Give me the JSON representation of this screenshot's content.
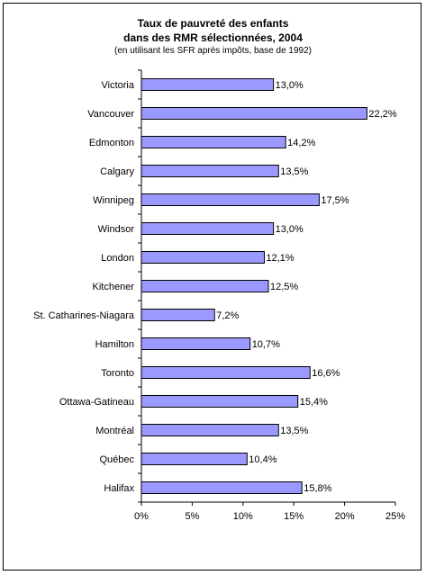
{
  "chart_data": {
    "type": "bar",
    "orientation": "horizontal",
    "title": "Taux de pauvreté des enfants",
    "title_line2": "dans des RMR sélectionnées, 2004",
    "subtitle": "(en utilisant les SFR après impôts, base de 1992)",
    "categories": [
      "Victoria",
      "Vancouver",
      "Edmonton",
      "Calgary",
      "Winnipeg",
      "Windsor",
      "London",
      "Kitchener",
      "St. Catharines-Niagara",
      "Hamilton",
      "Toronto",
      "Ottawa-Gatineau",
      "Montréal",
      "Québec",
      "Halifax"
    ],
    "values": [
      13.0,
      22.2,
      14.2,
      13.5,
      17.5,
      13.0,
      12.1,
      12.5,
      7.2,
      10.7,
      16.6,
      15.4,
      13.5,
      10.4,
      15.8
    ],
    "value_labels": [
      "13,0%",
      "22,2%",
      "14,2%",
      "13,5%",
      "17,5%",
      "13,0%",
      "12,1%",
      "12,5%",
      "7,2%",
      "10,7%",
      "16,6%",
      "15,4%",
      "13,5%",
      "10,4%",
      "15,8%"
    ],
    "xlim": [
      0,
      25
    ],
    "xticks": [
      0,
      5,
      10,
      15,
      20,
      25
    ],
    "xtick_labels": [
      "0%",
      "5%",
      "10%",
      "15%",
      "20%",
      "25%"
    ],
    "grid": false,
    "legend": "none",
    "bar_color": "#9999ff",
    "bar_border_color": "#000000"
  }
}
